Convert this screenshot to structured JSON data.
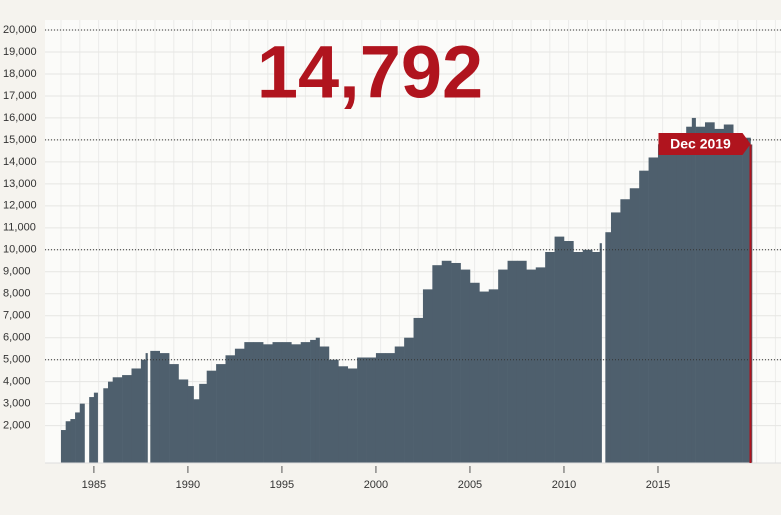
{
  "chart_data": {
    "type": "step-area",
    "title": "14,792",
    "annotation": "Dec 2019",
    "color": "#4e5f6d",
    "accent": "#b0141e",
    "x": [
      1983.25,
      1983.5,
      1983.75,
      1984.0,
      1984.25,
      1984.5,
      1984.75,
      1985.0,
      1985.2,
      1985.5,
      1985.75,
      1986.0,
      1986.5,
      1987.0,
      1987.5,
      1987.75,
      1987.85,
      1988.0,
      1988.5,
      1989.0,
      1989.5,
      1990.0,
      1990.3,
      1990.6,
      1991.0,
      1991.5,
      1992.0,
      1992.5,
      1993.0,
      1993.5,
      1994.0,
      1994.5,
      1995.0,
      1995.5,
      1996.0,
      1996.5,
      1996.8,
      1997.0,
      1997.5,
      1998.0,
      1998.5,
      1999.0,
      1999.5,
      2000.0,
      2000.5,
      2001.0,
      2001.5,
      2002.0,
      2002.5,
      2003.0,
      2003.5,
      2004.0,
      2004.5,
      2005.0,
      2005.5,
      2006.0,
      2006.5,
      2007.0,
      2007.5,
      2008.0,
      2008.5,
      2009.0,
      2009.5,
      2010.0,
      2010.5,
      2011.0,
      2011.5,
      2011.9,
      2012.0,
      2012.2,
      2012.5,
      2013.0,
      2013.5,
      2014.0,
      2014.5,
      2015.0,
      2015.5,
      2016.0,
      2016.5,
      2016.8,
      2017.0,
      2017.5,
      2018.0,
      2018.5,
      2019.0,
      2019.5,
      2019.92
    ],
    "values": [
      1800,
      2200,
      2300,
      2600,
      3000,
      null,
      3300,
      3500,
      null,
      3700,
      4000,
      4200,
      4300,
      4600,
      5000,
      5300,
      null,
      5400,
      5300,
      4800,
      4100,
      3800,
      3200,
      3900,
      4500,
      4800,
      5200,
      5500,
      5800,
      5800,
      5700,
      5800,
      5800,
      5700,
      5800,
      5900,
      6000,
      5600,
      5000,
      4700,
      4600,
      5100,
      5100,
      5300,
      5300,
      5600,
      6000,
      6900,
      8200,
      9300,
      9500,
      9400,
      9100,
      8500,
      8100,
      8200,
      9100,
      9500,
      9500,
      9100,
      9200,
      9900,
      10600,
      10400,
      9900,
      10000,
      9900,
      10300,
      null,
      10800,
      11700,
      12300,
      12800,
      13600,
      14200,
      14800,
      15300,
      15300,
      15600,
      16000,
      15600,
      15800,
      15500,
      15700,
      15100,
      15100,
      14792
    ],
    "xlim": [
      1982.4,
      2020.0
    ],
    "xticks": [
      1985,
      1990,
      1995,
      2000,
      2005,
      2010,
      2015
    ],
    "ylim": [
      300,
      20000
    ],
    "yticks": [
      {
        "value": 2000,
        "label": "2,000"
      },
      {
        "value": 3000,
        "label": "3,000"
      },
      {
        "value": 4000,
        "label": "4,000"
      },
      {
        "value": 5000,
        "label": "5,000"
      },
      {
        "value": 6000,
        "label": "6,000"
      },
      {
        "value": 7000,
        "label": "7,000"
      },
      {
        "value": 8000,
        "label": "8,000"
      },
      {
        "value": 9000,
        "label": "9,000"
      },
      {
        "value": 10000,
        "label": "10,000"
      },
      {
        "value": 11000,
        "label": "11,000"
      },
      {
        "value": 12000,
        "label": "12,000"
      },
      {
        "value": 13000,
        "label": "13,000"
      },
      {
        "value": 14000,
        "label": "14,000"
      },
      {
        "value": 15000,
        "label": "15,000"
      },
      {
        "value": 16000,
        "label": "16,000"
      },
      {
        "value": 17000,
        "label": "17,000"
      },
      {
        "value": 18000,
        "label": "18,000"
      },
      {
        "value": 19000,
        "label": "19,000"
      },
      {
        "value": 20000,
        "label": "20,000"
      }
    ],
    "major_yticks": [
      5000,
      10000,
      15000,
      20000
    ],
    "grid": true
  }
}
